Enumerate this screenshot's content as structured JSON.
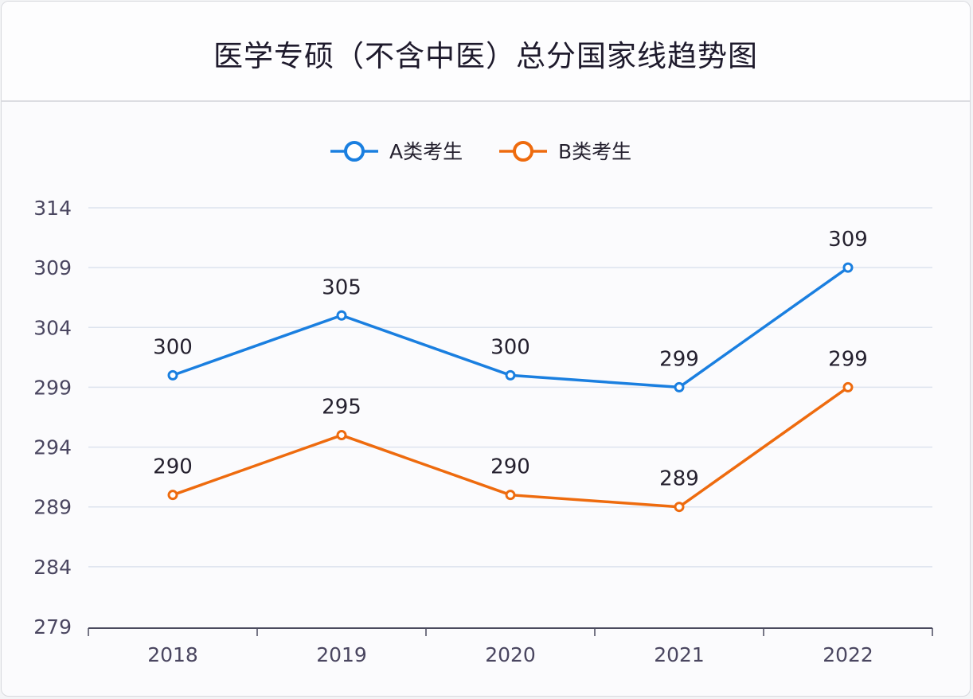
{
  "chart_data": {
    "type": "line",
    "title": "医学专硕（不含中医）总分国家线趋势图",
    "xlabel": "",
    "ylabel": "",
    "categories": [
      "2018",
      "2019",
      "2020",
      "2021",
      "2022"
    ],
    "ylim": [
      279,
      314
    ],
    "yticks": [
      314,
      309,
      304,
      299,
      294,
      289,
      284,
      279
    ],
    "grid": true,
    "legend_position": "top-center",
    "series": [
      {
        "name": "A类考生",
        "color": "#1a7fe0",
        "values": [
          300,
          305,
          300,
          299,
          309
        ],
        "labels": [
          "300",
          "305",
          "300",
          "299",
          "309"
        ]
      },
      {
        "name": "B类考生",
        "color": "#ee6b0e",
        "values": [
          290,
          295,
          290,
          289,
          299
        ],
        "labels": [
          "290",
          "295",
          "290",
          "289",
          "299"
        ]
      }
    ]
  }
}
